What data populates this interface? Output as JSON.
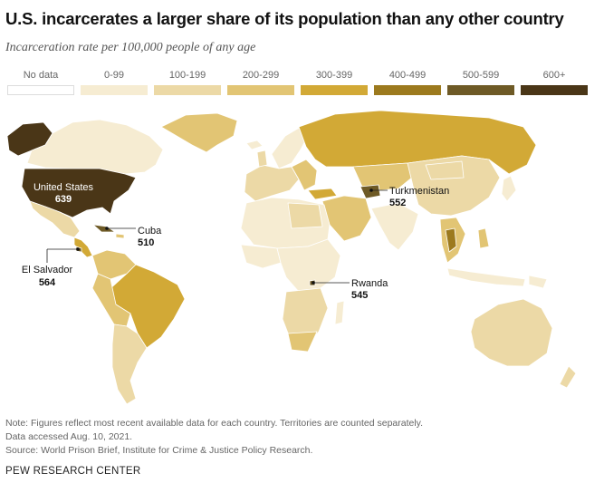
{
  "title": "U.S. incarcerates a larger share of its population than any other country",
  "subtitle": "Incarceration rate per 100,000 people of any age",
  "legend": [
    {
      "label": "No data",
      "color": "#ffffff"
    },
    {
      "label": "0-99",
      "color": "#f6ecd2"
    },
    {
      "label": "100-199",
      "color": "#ecd9a6"
    },
    {
      "label": "200-299",
      "color": "#e2c574"
    },
    {
      "label": "300-399",
      "color": "#d2a936"
    },
    {
      "label": "400-499",
      "color": "#9c7a1e"
    },
    {
      "label": "500-599",
      "color": "#6e5a26"
    },
    {
      "label": "600+",
      "color": "#4a3617"
    }
  ],
  "callouts": [
    {
      "name": "United States",
      "value": "639"
    },
    {
      "name": "Cuba",
      "value": "510"
    },
    {
      "name": "El Salvador",
      "value": "564"
    },
    {
      "name": "Turkmenistan",
      "value": "552"
    },
    {
      "name": "Rwanda",
      "value": "545"
    }
  ],
  "notes": [
    "Note: Figures reflect most recent available data for each country. Territories are counted separately.",
    "Data accessed Aug. 10, 2021.",
    "Source: World Prison Brief, Institute for Crime & Justice Policy Research."
  ],
  "brand": "PEW RESEARCH CENTER"
}
